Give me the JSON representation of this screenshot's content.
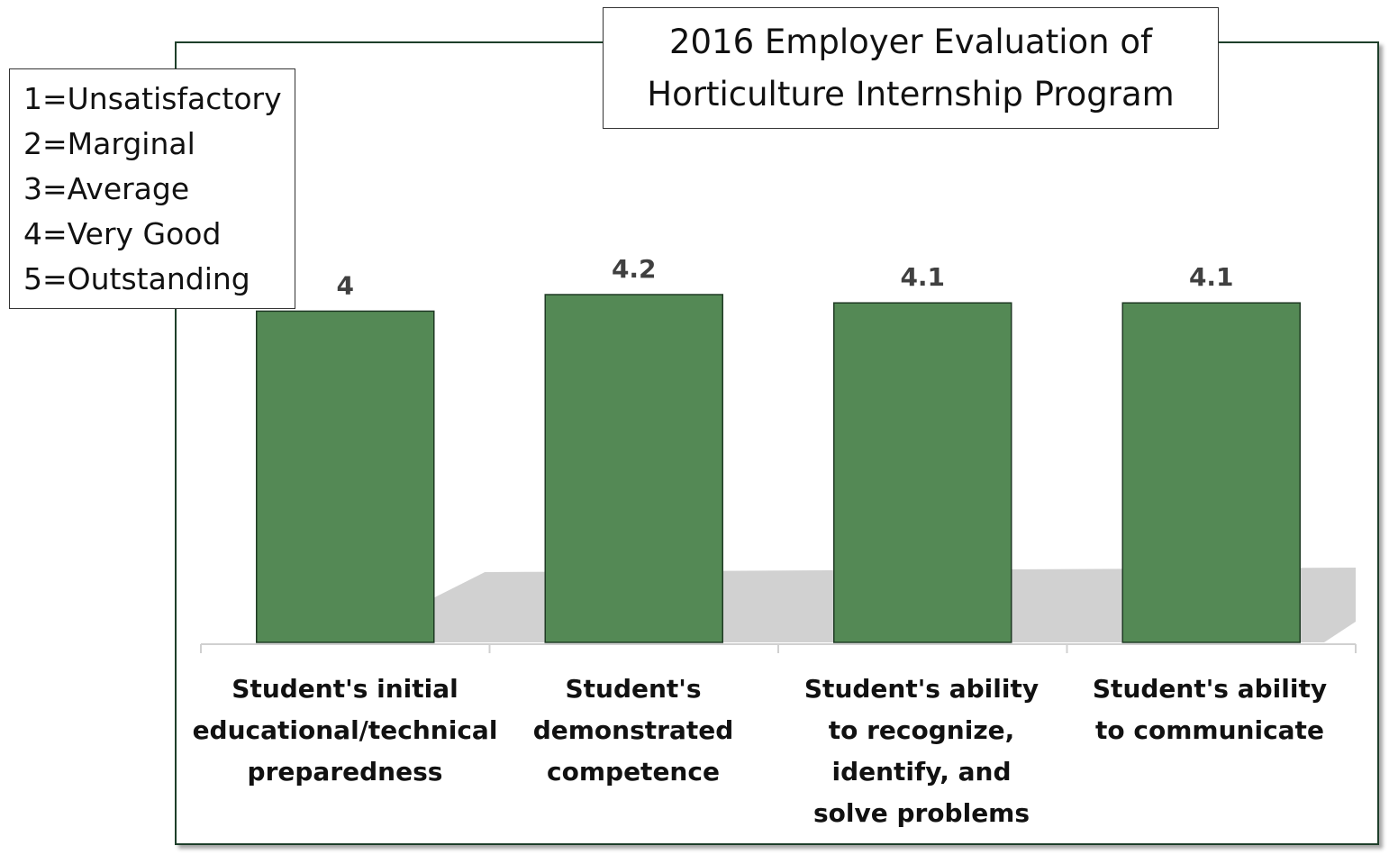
{
  "chart_data": {
    "type": "bar",
    "title": [
      "2016 Employer Evaluation of",
      "Horticulture Internship Program"
    ],
    "categories": [
      [
        "Student's initial",
        "educational/technical",
        "preparedness"
      ],
      [
        "Student's",
        "demonstrated",
        "competence"
      ],
      [
        "Student's ability",
        "to recognize,",
        "identify, and",
        "solve problems"
      ],
      [
        "Student's ability",
        "to communicate"
      ]
    ],
    "values": [
      4,
      4.2,
      4.1,
      4.1
    ],
    "data_labels": [
      "4",
      "4.2",
      "4.1",
      "4.1"
    ],
    "ylim": [
      0,
      4.2
    ],
    "grid": false,
    "xlabel": "",
    "ylabel": "",
    "scale_legend": [
      "1=Unsatisfactory",
      "2=Marginal",
      "3=Average",
      "4=Very Good",
      "5=Outstanding"
    ],
    "scale_legend_position": "top-left",
    "colors": {
      "bar": "#548955",
      "bar_border": "#1f3a24",
      "shadow": "#cccccc",
      "frame": "#1e3f2a",
      "axis": "#d0d0d0"
    }
  }
}
